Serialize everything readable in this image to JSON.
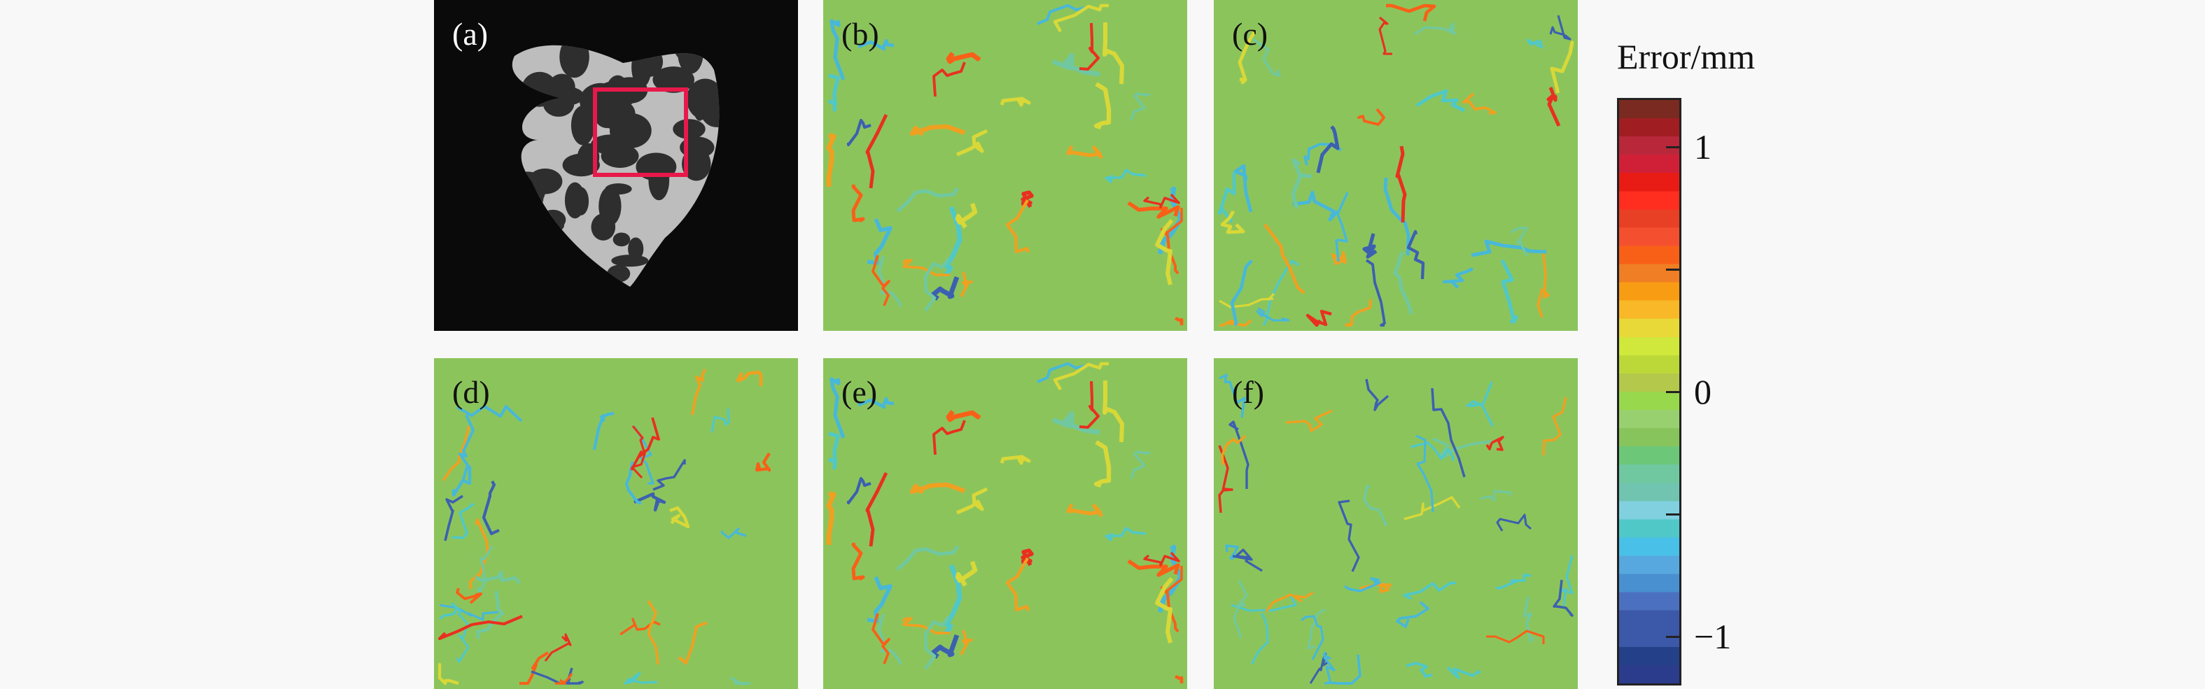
{
  "chart_data": {
    "type": "heatmap",
    "panels": [
      {
        "label": "(a)",
        "kind": "grayscale speckle image with region-of-interest box",
        "roi_color": "#e8194a"
      },
      {
        "label": "(b)",
        "kind": "error map"
      },
      {
        "label": "(c)",
        "kind": "error map"
      },
      {
        "label": "(d)",
        "kind": "error map"
      },
      {
        "label": "(e)",
        "kind": "error map"
      },
      {
        "label": "(f)",
        "kind": "error map"
      }
    ],
    "colorbar": {
      "title": "Error/mm",
      "range": [
        -1.2,
        1.2
      ],
      "ticks": [
        1,
        0.5,
        0,
        -0.5,
        -1
      ],
      "tick_labels": [
        "1",
        "",
        "0",
        "",
        "−1"
      ],
      "colors": [
        "#7a2a20",
        "#a01e22",
        "#b8283a",
        "#d02038",
        "#e81c14",
        "#ff2e1e",
        "#e84024",
        "#f45030",
        "#f86018",
        "#f07e24",
        "#f89c14",
        "#f8b828",
        "#e8d838",
        "#d0e83c",
        "#bcd838",
        "#b4c84c",
        "#98d84c",
        "#98d070",
        "#88c45c",
        "#6cc878",
        "#70c8a0",
        "#70c4b0",
        "#80d0e0",
        "#50c8c8",
        "#48c0e8",
        "#58a8e0",
        "#4890d0",
        "#4c70c0",
        "#3c58a8",
        "#3c58a8",
        "#244088",
        "#2c3c8c"
      ]
    }
  },
  "background_color": "#8cc45c"
}
